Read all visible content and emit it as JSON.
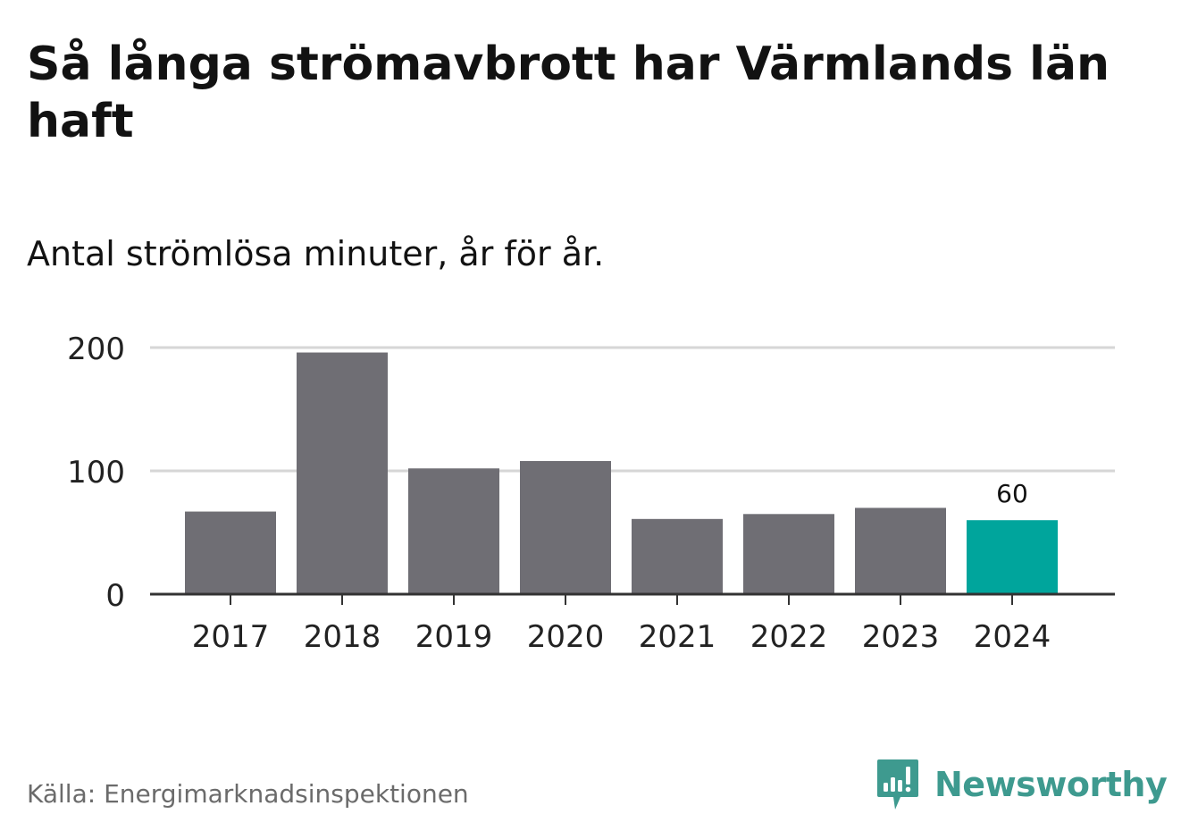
{
  "chart_data": {
    "type": "bar",
    "title": "Så långa strömavbrott har Värmlands län haft",
    "subtitle": "Antal strömlösa minuter, år för år.",
    "categories": [
      "2017",
      "2018",
      "2019",
      "2020",
      "2021",
      "2022",
      "2023",
      "2024"
    ],
    "values": [
      67,
      196,
      102,
      108,
      61,
      65,
      70,
      60
    ],
    "highlight_index": 7,
    "data_labels": [
      {
        "index": 7,
        "text": "60"
      }
    ],
    "ylim": [
      0,
      200
    ],
    "yticks": [
      {
        "value": 0,
        "label": "0"
      },
      {
        "value": 100,
        "label": "100"
      },
      {
        "value": 200,
        "label": "200"
      }
    ],
    "xlabel": "",
    "ylabel": "",
    "grid": true,
    "colors": {
      "bar": "#6f6e74",
      "highlight": "#00a59c",
      "grid": "#d6d6d6",
      "axis": "#333333",
      "text": "#222222"
    }
  },
  "footer": {
    "source": "Källa: Energimarknadsinspektionen",
    "brand": "Newsworthy",
    "brand_icon": "newsworthy-logo-icon",
    "brand_color": "#3e9a8f"
  }
}
